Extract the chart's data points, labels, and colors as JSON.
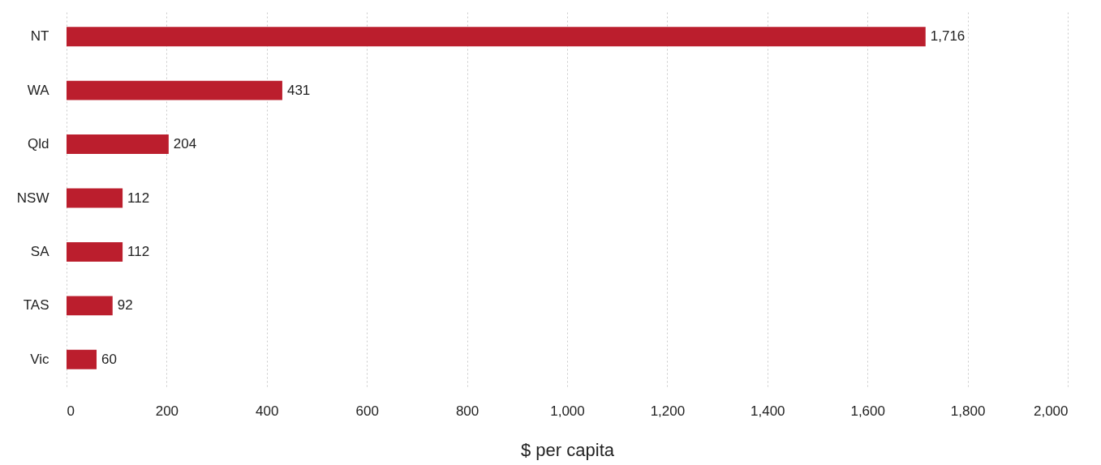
{
  "chart_data": {
    "type": "bar",
    "orientation": "horizontal",
    "xlabel": "$ per capita",
    "categories": [
      "NT",
      "WA",
      "Qld",
      "NSW",
      "SA",
      "TAS",
      "Vic"
    ],
    "values": [
      1716,
      431,
      204,
      112,
      112,
      92,
      60
    ],
    "value_labels": [
      "1,716",
      "431",
      "204",
      "112",
      "112",
      "92",
      "60"
    ],
    "color": "#bb1e2d",
    "xlim": [
      0,
      2000
    ],
    "xticks": [
      0,
      200,
      400,
      600,
      800,
      {
        "value": 1000,
        "label": "1,000"
      },
      {
        "value": 1200,
        "label": "1,200"
      },
      {
        "value": 1400,
        "label": "1,400"
      },
      {
        "value": 1600,
        "label": "1,600"
      },
      {
        "value": 1800,
        "label": "1,800"
      },
      {
        "value": 2000,
        "label": "2,000"
      }
    ],
    "grid": "x"
  }
}
